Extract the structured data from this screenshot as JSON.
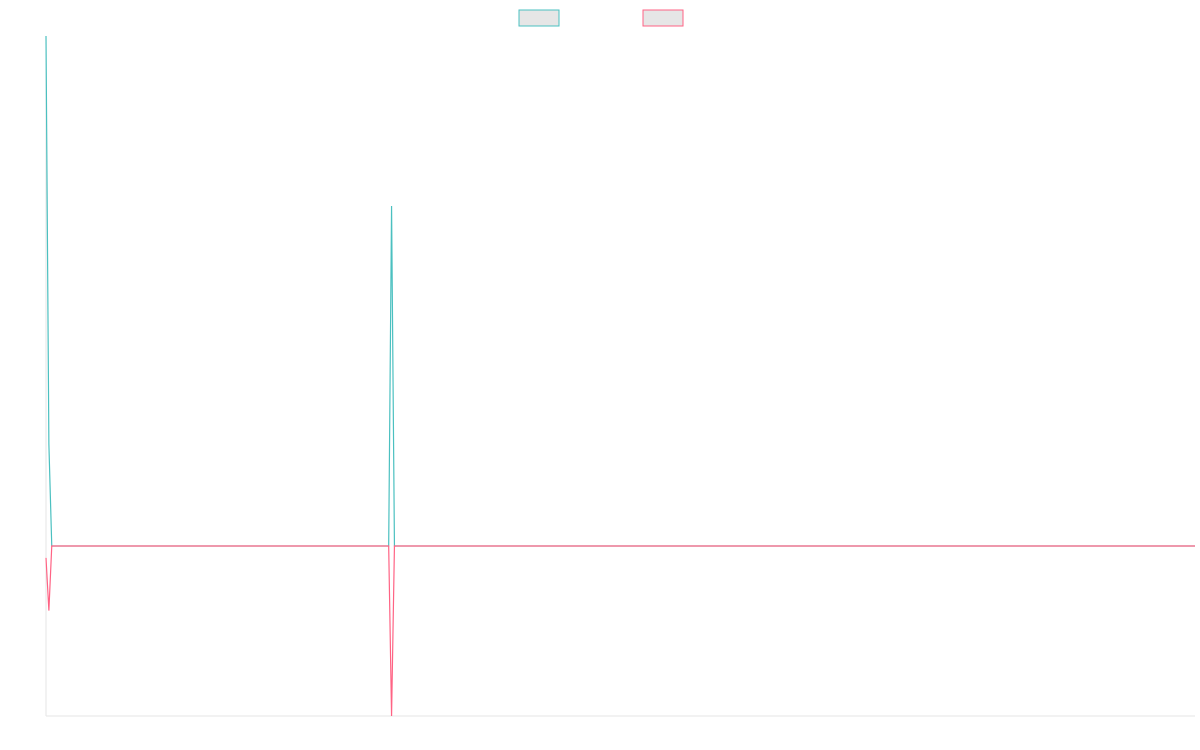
{
  "chart_data": {
    "type": "line",
    "title": "",
    "xlabel": "",
    "ylabel": "",
    "grid": false,
    "legend_position": "top-center",
    "x_count": 400,
    "ylim": [
      -100,
      300
    ],
    "series": [
      {
        "name": "",
        "color": "#4bc0c0",
        "fill": "#e6e6e6",
        "points": [
          [
            0,
            300
          ],
          [
            1,
            60
          ],
          [
            2,
            0
          ],
          [
            118,
            0
          ],
          [
            119,
            0
          ],
          [
            120,
            200
          ],
          [
            121,
            0
          ],
          [
            122,
            0
          ],
          [
            399,
            0
          ]
        ]
      },
      {
        "name": "",
        "color": "#ff6384",
        "fill": "#e6e6e6",
        "points": [
          [
            0,
            -7
          ],
          [
            1,
            -38
          ],
          [
            2,
            0
          ],
          [
            118,
            0
          ],
          [
            119,
            0
          ],
          [
            120,
            -100
          ],
          [
            121,
            0
          ],
          [
            122,
            0
          ],
          [
            399,
            0
          ]
        ]
      }
    ]
  }
}
